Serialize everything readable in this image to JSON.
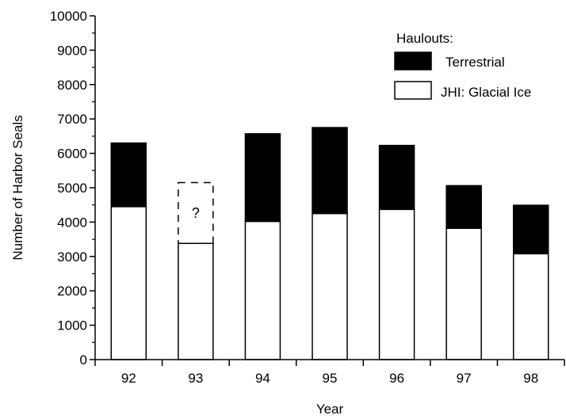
{
  "chart_data": {
    "type": "bar",
    "stacked": true,
    "categories": [
      "92",
      "93",
      "94",
      "95",
      "96",
      "97",
      "98"
    ],
    "series": [
      {
        "name": "JHI: Glacial Ice",
        "color": "#ffffff",
        "values": [
          4450,
          3380,
          4020,
          4250,
          4370,
          3820,
          3080
        ]
      },
      {
        "name": "Terrestrial",
        "color": "#000000",
        "values": [
          1850,
          null,
          2550,
          2500,
          1860,
          1240,
          1410
        ]
      }
    ],
    "uncertain": {
      "category": "93",
      "top_value": 5150,
      "label": "?"
    },
    "xlabel": "Year",
    "ylabel": "Number of Harbor Seals",
    "ylim": [
      0,
      10000
    ],
    "yticks": [
      0,
      1000,
      2000,
      3000,
      4000,
      5000,
      6000,
      7000,
      8000,
      9000,
      10000
    ],
    "legend": {
      "title": "Haulouts:",
      "placement": "top-right"
    },
    "grid": false
  }
}
